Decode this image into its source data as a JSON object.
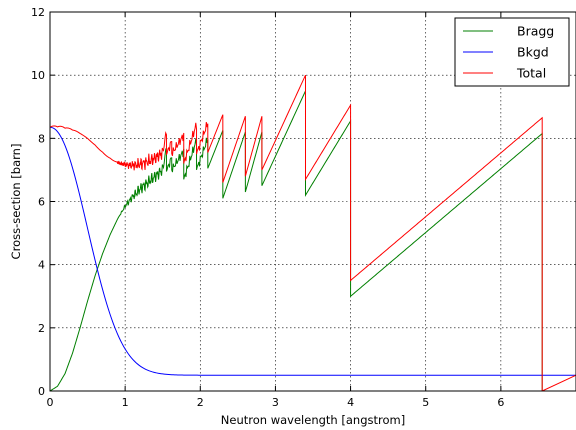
{
  "chart_data": {
    "type": "line",
    "xlabel": "Neutron wavelength [angstrom]",
    "ylabel": "Cross-section [barn]",
    "xlim": [
      0,
      7
    ],
    "ylim": [
      0,
      12
    ],
    "x_ticks": [
      "0",
      "1",
      "2",
      "3",
      "4",
      "5",
      "6"
    ],
    "y_ticks": [
      "0",
      "2",
      "4",
      "6",
      "8",
      "10",
      "12"
    ],
    "grid": true,
    "legend_position": "top-right",
    "bkgd_model": {
      "amplitude": 7.85,
      "baseline": 0.5,
      "width": 0.68,
      "power": 2.1
    },
    "bragg_edges": [
      {
        "x": 1.55,
        "low": 6.95,
        "high": 7.7
      },
      {
        "x": 1.62,
        "low": 7.0,
        "high": 7.4
      },
      {
        "x": 1.78,
        "low": 6.7,
        "high": 7.6
      },
      {
        "x": 1.95,
        "low": 7.0,
        "high": 7.95
      },
      {
        "x": 2.1,
        "low": 7.05,
        "high": 8.0
      },
      {
        "x": 2.3,
        "low": 6.1,
        "high": 8.25
      },
      {
        "x": 2.6,
        "low": 6.3,
        "high": 8.2
      },
      {
        "x": 2.82,
        "low": 6.5,
        "high": 8.2
      },
      {
        "x": 3.4,
        "low": 6.2,
        "high": 9.5
      },
      {
        "x": 4.0,
        "low": 3.0,
        "high": 8.55
      },
      {
        "x": 6.55,
        "low": 0.0,
        "high": 8.15
      }
    ],
    "series": [
      {
        "name": "Bragg",
        "color": "#007f00",
        "x": [
          0.0,
          0.1,
          0.2,
          0.3,
          0.4,
          0.5,
          0.6,
          0.7,
          0.8,
          0.9,
          1.0,
          1.1,
          1.2,
          1.3,
          1.4,
          1.5
        ],
        "y": [
          0.0,
          0.15,
          0.55,
          1.2,
          2.0,
          2.85,
          3.65,
          4.35,
          4.95,
          5.45,
          5.85,
          6.15,
          6.4,
          6.6,
          6.8,
          7.0
        ]
      },
      {
        "name": "Bkgd",
        "color": "#0000ff"
      },
      {
        "name": "Total",
        "color": "#ff0000"
      }
    ]
  }
}
